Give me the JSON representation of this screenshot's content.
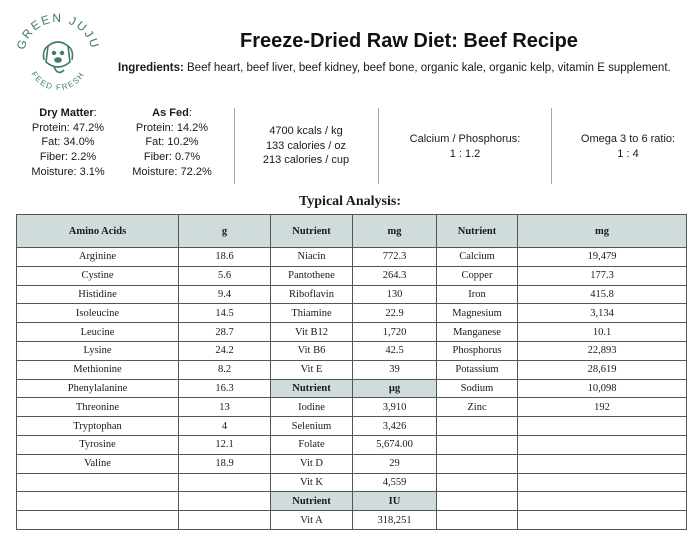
{
  "brand": {
    "logo_top_text": "GREEN JUJU",
    "logo_bottom_text": "FEED FRESH",
    "accent_color": "#3f7a6e"
  },
  "title": "Freeze-Dried Raw Diet: Beef Recipe",
  "ingredients": {
    "label": "Ingredients:",
    "text": " Beef heart, beef liver, beef kidney, beef bone, organic kale, organic kelp, vitamin E supplement."
  },
  "dry_matter": {
    "heading": "Dry Matter",
    "lines": [
      "Protein: 47.2%",
      "Fat: 34.0%",
      "Fiber: 2.2%",
      "Moisture: 3.1%"
    ]
  },
  "as_fed": {
    "heading": "As Fed",
    "lines": [
      "Protein: 14.2%",
      "Fat: 10.2%",
      "Fiber: 0.7%",
      "Moisture: 72.2%"
    ]
  },
  "calories": [
    "4700 kcals / kg",
    "133 calories / oz",
    "213 calories / cup"
  ],
  "calcium_phosphorus": {
    "label": "Calcium / Phosphorus:",
    "value": "1 : 1.2"
  },
  "omega": {
    "label": "Omega 3 to 6 ratio:",
    "value": "1 : 4"
  },
  "typical_analysis_title": "Typical Analysis:",
  "table": {
    "headers": [
      "Amino Acids",
      "g",
      "Nutrient",
      "mg",
      "Nutrient",
      "mg"
    ],
    "rows": [
      [
        "Arginine",
        "18.6",
        "Niacin",
        "772.3",
        "Calcium",
        "19,479"
      ],
      [
        "Cystine",
        "5.6",
        "Pantothene",
        "264.3",
        "Copper",
        "177.3"
      ],
      [
        "Histidine",
        "9.4",
        "Riboflavin",
        "130",
        "Iron",
        "415.8"
      ],
      [
        "Isoleucine",
        "14.5",
        "Thiamine",
        "22.9",
        "Magnesium",
        "3,134"
      ],
      [
        "Leucine",
        "28.7",
        "Vit B12",
        "1,720",
        "Manganese",
        "10.1"
      ],
      [
        "Lysine",
        "24.2",
        "Vit B6",
        "42.5",
        "Phosphorus",
        "22,893"
      ],
      [
        "Methionine",
        "8.2",
        "Vit E",
        "39",
        "Potassium",
        "28,619"
      ],
      [
        "Phenylalanine",
        "16.3",
        "Nutrient",
        "µg",
        "Sodium",
        "10,098"
      ],
      [
        "Threonine",
        "13",
        "Iodine",
        "3,910",
        "Zinc",
        "192"
      ],
      [
        "Tryptophan",
        "4",
        "Selenium",
        "3,426",
        "",
        ""
      ],
      [
        "Tyrosine",
        "12.1",
        "Folate",
        "5,674.00",
        "",
        ""
      ],
      [
        "Valine",
        "18.9",
        "Vit D",
        "29",
        "",
        ""
      ],
      [
        "",
        "",
        "Vit K",
        "4,559",
        "",
        ""
      ],
      [
        "",
        "",
        "Nutrient",
        "IU",
        "",
        ""
      ],
      [
        "",
        "",
        "Vit A",
        "318,251",
        "",
        ""
      ]
    ]
  }
}
